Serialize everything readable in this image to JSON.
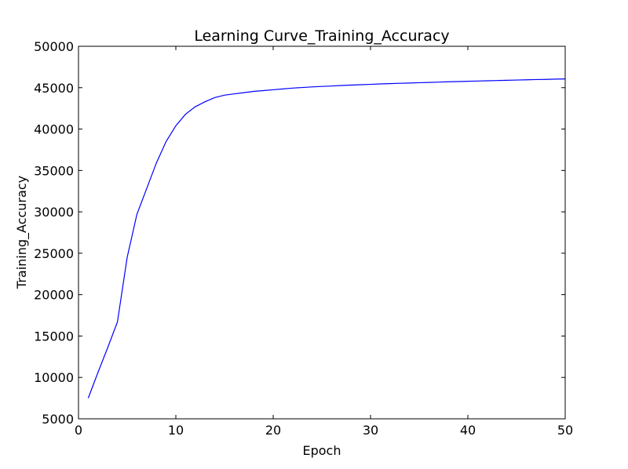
{
  "chart_data": {
    "type": "line",
    "title": "Learning Curve_Training_Accuracy",
    "xlabel": "Epoch",
    "ylabel": "Training_Accuracy",
    "xlim": [
      0,
      50
    ],
    "ylim": [
      5000,
      50000
    ],
    "xticks": [
      0,
      10,
      20,
      30,
      40,
      50
    ],
    "yticks": [
      5000,
      10000,
      15000,
      20000,
      25000,
      30000,
      35000,
      40000,
      45000,
      50000
    ],
    "grid": false,
    "series": [
      {
        "color": "#0000ff",
        "x": [
          1,
          2,
          3,
          4,
          5,
          6,
          7,
          8,
          9,
          10,
          11,
          12,
          13,
          14,
          15,
          16,
          17,
          18,
          19,
          20,
          21,
          22,
          23,
          24,
          25,
          26,
          27,
          28,
          29,
          30,
          31,
          32,
          33,
          34,
          35,
          36,
          37,
          38,
          39,
          40,
          41,
          42,
          43,
          44,
          45,
          46,
          47,
          48,
          49,
          50
        ],
        "y": [
          7500,
          10600,
          13600,
          16700,
          24500,
          29700,
          32800,
          35900,
          38500,
          40400,
          41800,
          42700,
          43300,
          43800,
          44100,
          44250,
          44400,
          44550,
          44650,
          44750,
          44850,
          44950,
          45020,
          45090,
          45150,
          45200,
          45260,
          45310,
          45360,
          45400,
          45450,
          45490,
          45530,
          45560,
          45600,
          45630,
          45670,
          45710,
          45740,
          45770,
          45800,
          45830,
          45860,
          45890,
          45920,
          45950,
          45980,
          46000,
          46030,
          46060
        ]
      }
    ]
  }
}
